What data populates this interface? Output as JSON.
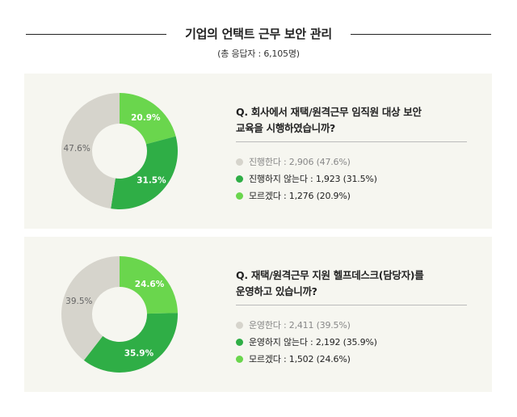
{
  "header": {
    "title": "기업의 언택트 근무 보안 관리",
    "subtitle": "(총 응답자 : 6,105명)"
  },
  "colors": {
    "gray": "#d6d4cc",
    "green_dark": "#2fae46",
    "green_light": "#6ad64d",
    "panel_bg": "#f6f6f0"
  },
  "chart_data": [
    {
      "type": "pie",
      "title": "Q. 회사에서 재택/원격근무 임직원 대상 보안 교육을 시행하였습니까?",
      "slices": [
        {
          "label": "모르겠다",
          "value": 20.9,
          "count": "1,276",
          "display": "20.9%",
          "legend": "모르겠다 : 1,276 (20.9%)",
          "color": "#6ad64d"
        },
        {
          "label": "진행하지 않는다",
          "value": 31.5,
          "count": "1,923",
          "display": "31.5%",
          "legend": "진행하지 않는다 : 1,923 (31.5%)",
          "color": "#2fae46"
        },
        {
          "label": "진행한다",
          "value": 47.6,
          "count": "2,906",
          "display": "47.6%",
          "legend": "진행한다 : 2,906 (47.6%)",
          "color": "#d6d4cc"
        }
      ],
      "question_lines": [
        "Q. 회사에서 재택/원격근무 임직원 대상 보안",
        "교육을 시행하였습니까?"
      ]
    },
    {
      "type": "pie",
      "title": "Q. 재택/원격근무 지원 헬프데스크(담당자)를 운영하고 있습니까?",
      "slices": [
        {
          "label": "모르겠다",
          "value": 24.6,
          "count": "1,502",
          "display": "24.6%",
          "legend": "모르겠다 : 1,502 (24.6%)",
          "color": "#6ad64d"
        },
        {
          "label": "운영하지 않는다",
          "value": 35.9,
          "count": "2,192",
          "display": "35.9%",
          "legend": "운영하지 않는다 : 2,192 (35.9%)",
          "color": "#2fae46"
        },
        {
          "label": "운영한다",
          "value": 39.5,
          "count": "2,411",
          "display": "39.5%",
          "legend": "운영한다 : 2,411 (39.5%)",
          "color": "#d6d4cc"
        }
      ],
      "question_lines": [
        "Q. 재택/원격근무 지원 헬프데스크(담당자)를",
        "운영하고 있습니까?"
      ]
    }
  ],
  "legend_order": [
    2,
    1,
    0
  ]
}
